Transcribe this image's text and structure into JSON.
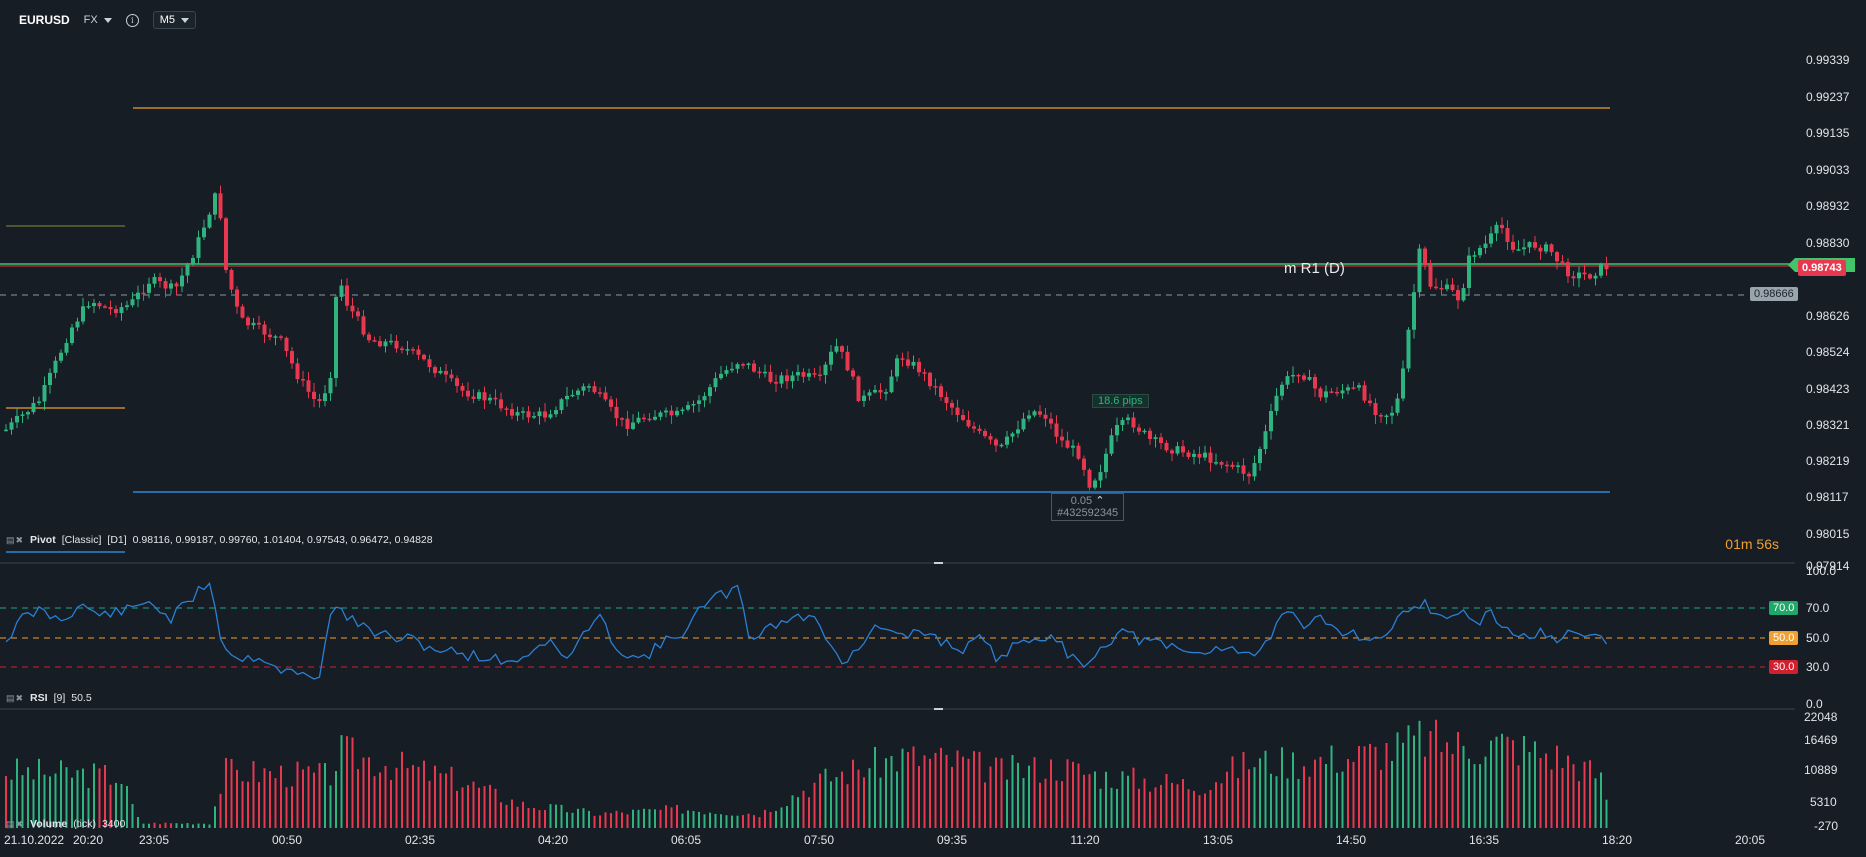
{
  "toolbar": {
    "symbol": "EURUSD",
    "market": "FX",
    "timeframe": "M5"
  },
  "price_axis": {
    "labels": [
      "0.99339",
      "0.99237",
      "0.99135",
      "0.99033",
      "0.98932",
      "0.98830",
      "0.98626",
      "0.98524",
      "0.98423",
      "0.98321",
      "0.98219",
      "0.98117",
      "0.98015",
      "0.97914"
    ],
    "current_price": "0.98743",
    "dashed_price": "0.98666",
    "countdown": "01m 56s"
  },
  "chart_annotations": {
    "pivot_line_label": "m R1 (D)",
    "measure_pips": "18.6 pips",
    "measure_value": "0.05",
    "measure_id": "#432592345"
  },
  "pivot_legend": {
    "name": "Pivot",
    "mode": "[Classic]",
    "period": "[D1]",
    "values": "0.98116,  0.99187,  0.99760,  1.01404,  0.97543,  0.96472,  0.94828"
  },
  "rsi": {
    "name": "RSI",
    "period": "[9]",
    "value": "50.5",
    "axis": [
      "100.0",
      "70.0",
      "50.0",
      "30.0",
      "0.0"
    ],
    "levels": {
      "high": "70.0",
      "mid": "50.0",
      "low": "30.0"
    }
  },
  "volume": {
    "name": "Volume",
    "mode": "(tick)",
    "value": "3400",
    "axis": [
      "22048",
      "16469",
      "10889",
      "5310",
      "-270"
    ]
  },
  "time_axis": {
    "date": "21.10.2022",
    "labels": [
      "20:20",
      "23:05",
      "00:50",
      "02:35",
      "04:20",
      "06:05",
      "07:50",
      "09:35",
      "11:20",
      "13:05",
      "14:50",
      "16:35",
      "18:20",
      "20:05"
    ]
  },
  "colors": {
    "bg": "#161d24",
    "up": "#2fb37f",
    "down": "#e8384f",
    "pivot_orange": "#c9892d",
    "pivot_blue": "#2a86d6",
    "pivot_green": "#41c46a",
    "rsi_line": "#2b7fd4"
  }
}
